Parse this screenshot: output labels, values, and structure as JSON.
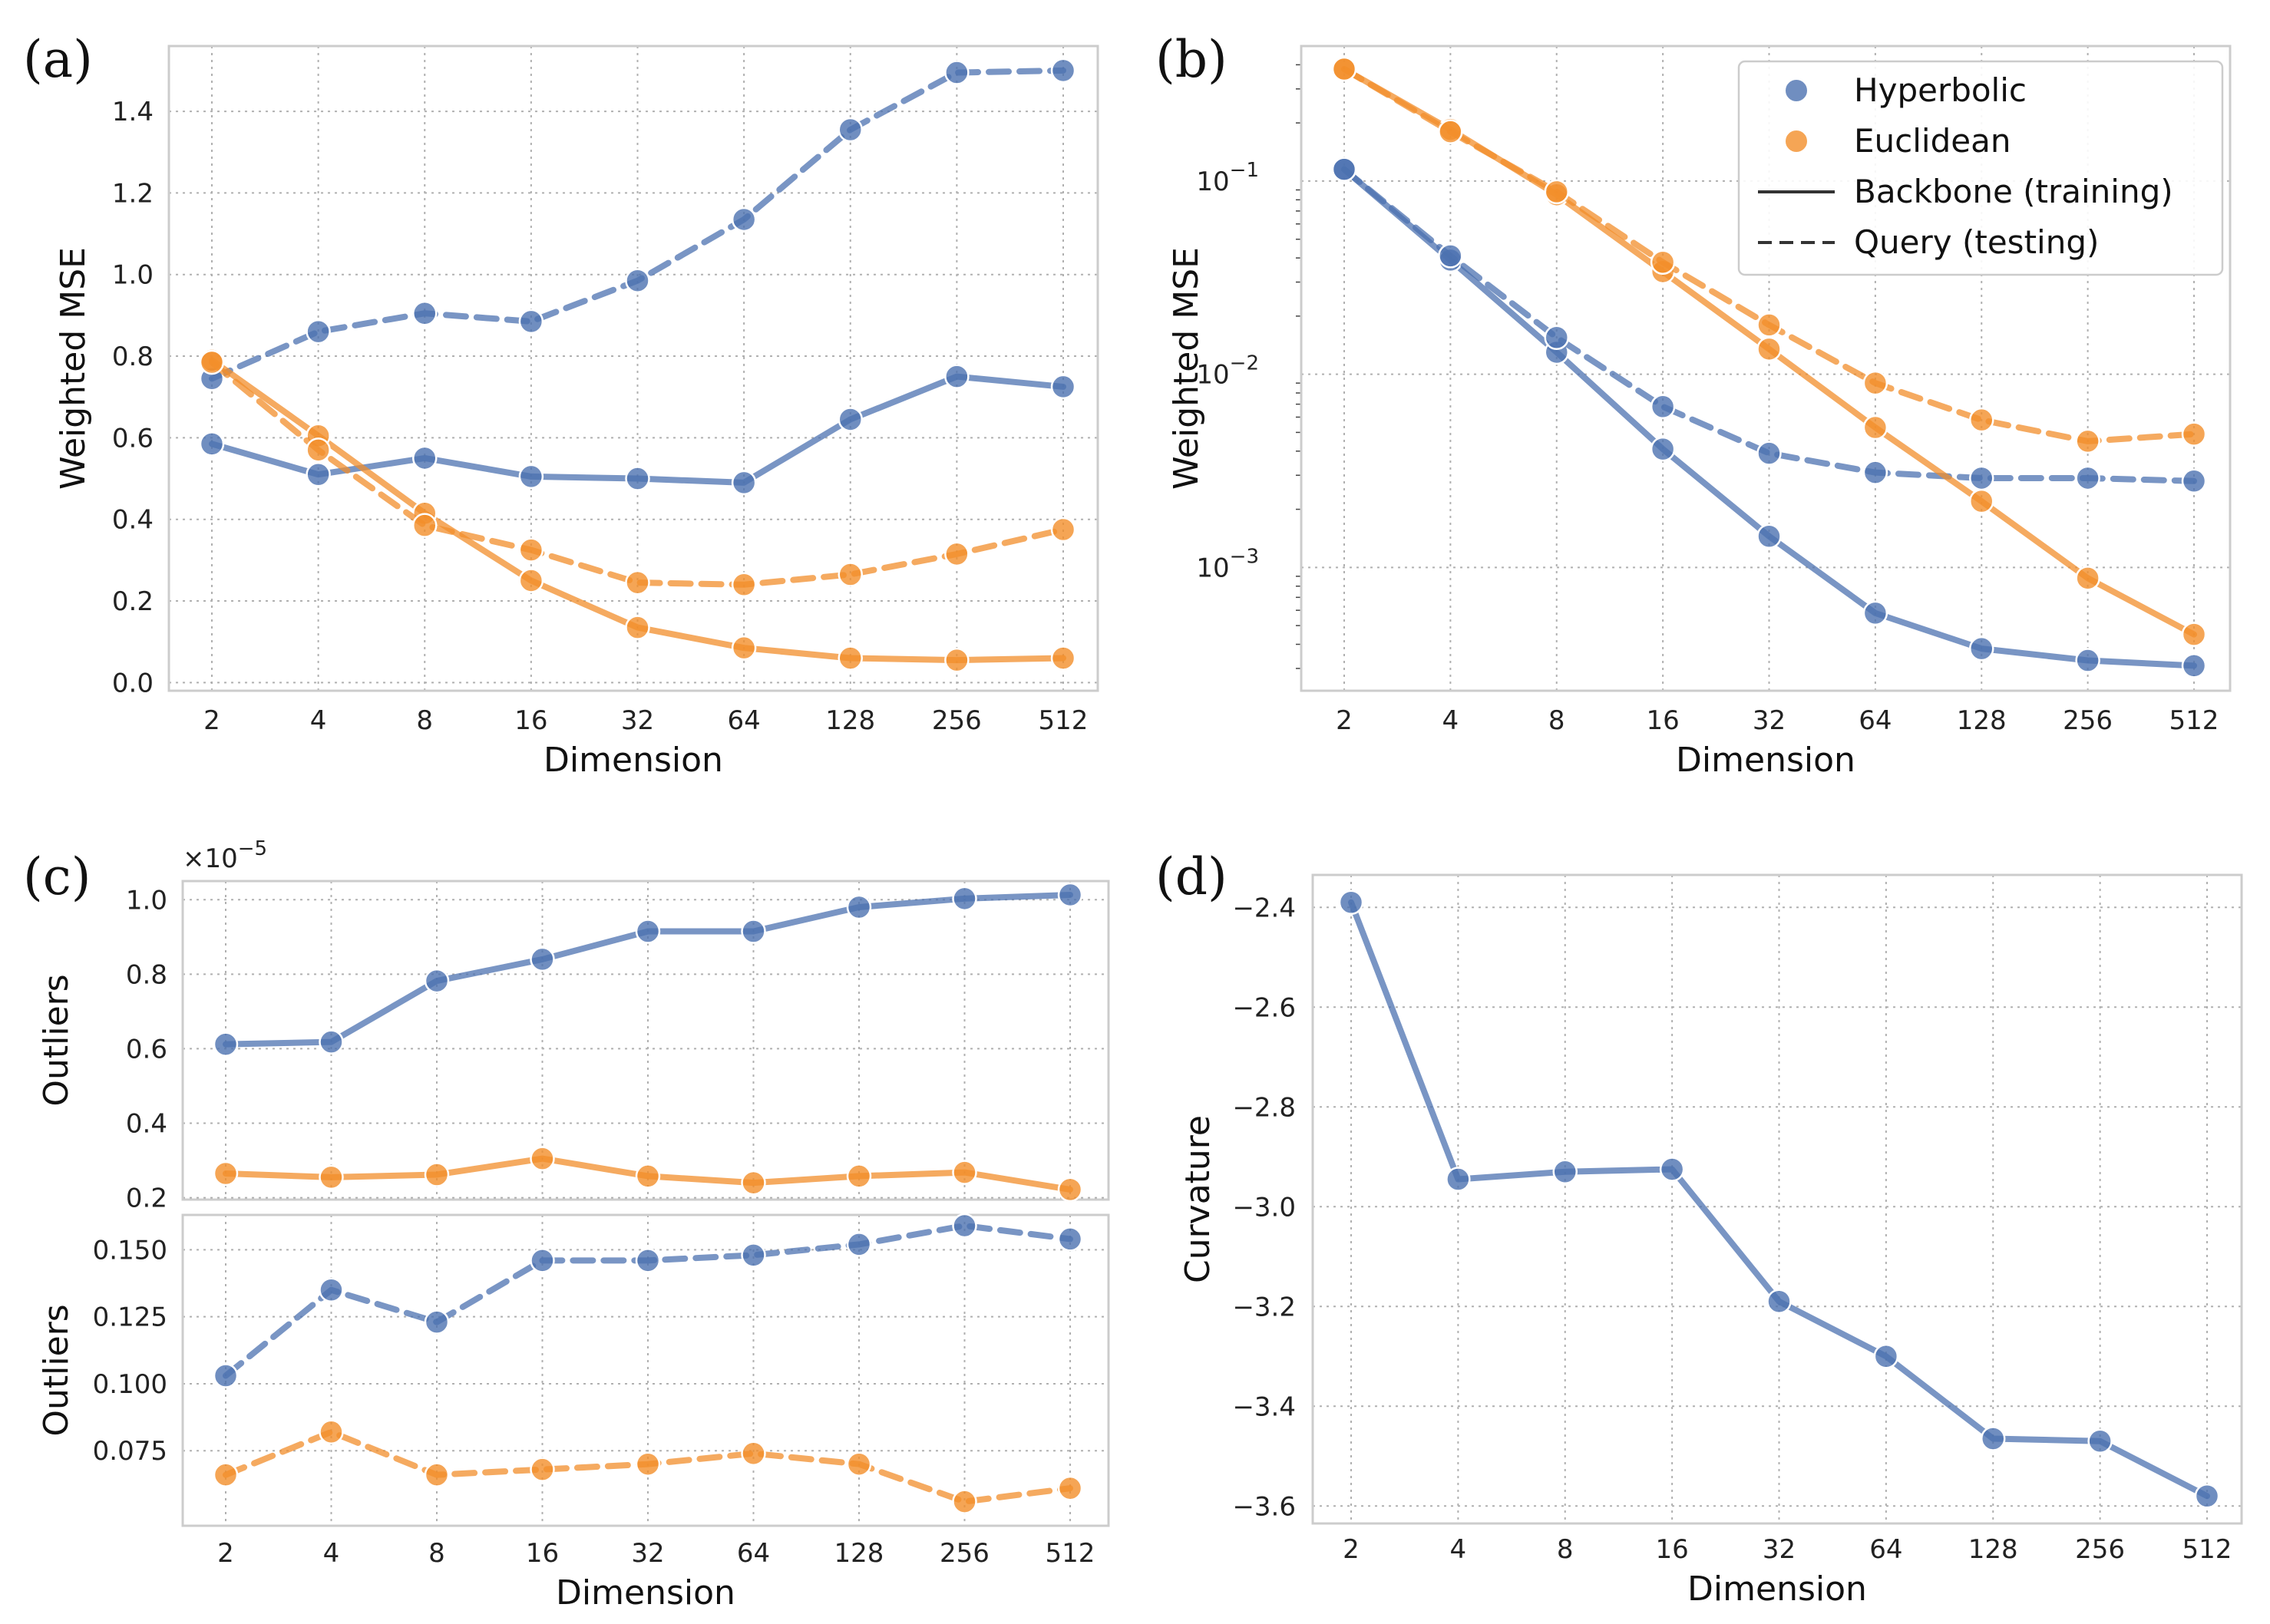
{
  "figure": {
    "colors": {
      "hyperbolic": "#4C72B0",
      "euclidean": "#F28E2B"
    }
  },
  "legend": {
    "entries": [
      "Hyperbolic",
      "Euclidean",
      "Backbone (training)",
      "Query (testing)"
    ]
  },
  "chart_data": [
    {
      "panel": "(a)",
      "type": "line",
      "xlabel": "Dimension",
      "ylabel": "Weighted MSE",
      "yscale": "linear",
      "ylim": [
        -0.02,
        1.56
      ],
      "yticks": [
        0.0,
        0.2,
        0.4,
        0.6,
        0.8,
        1.0,
        1.2,
        1.4
      ],
      "ytick_labels": [
        "0.0",
        "0.2",
        "0.4",
        "0.6",
        "0.8",
        "1.0",
        "1.2",
        "1.4"
      ],
      "categories": [
        "2",
        "4",
        "8",
        "16",
        "32",
        "64",
        "128",
        "256",
        "512"
      ],
      "series": [
        {
          "name": "Hyperbolic Backbone (training)",
          "color": "hyperbolic",
          "dash": "solid",
          "values": [
            0.585,
            0.51,
            0.55,
            0.505,
            0.5,
            0.49,
            0.645,
            0.75,
            0.725
          ]
        },
        {
          "name": "Hyperbolic Query (testing)",
          "color": "hyperbolic",
          "dash": "dashed",
          "values": [
            0.745,
            0.86,
            0.905,
            0.885,
            0.985,
            1.135,
            1.355,
            1.495,
            1.5
          ]
        },
        {
          "name": "Euclidean Backbone (training)",
          "color": "euclidean",
          "dash": "solid",
          "values": [
            0.79,
            0.605,
            0.415,
            0.25,
            0.135,
            0.085,
            0.06,
            0.055,
            0.06
          ]
        },
        {
          "name": "Euclidean Query (testing)",
          "color": "euclidean",
          "dash": "dashed",
          "values": [
            0.785,
            0.57,
            0.385,
            0.325,
            0.245,
            0.24,
            0.265,
            0.315,
            0.375
          ]
        }
      ]
    },
    {
      "panel": "(b)",
      "type": "line",
      "xlabel": "Dimension",
      "ylabel": "Weighted MSE",
      "yscale": "log",
      "ylim": [
        0.00023,
        0.5
      ],
      "yticks": [
        0.001,
        0.01,
        0.1
      ],
      "ytick_labels": [
        "10",
        "10",
        "10"
      ],
      "ytick_exponents": [
        "−3",
        "−2",
        "−1"
      ],
      "categories": [
        "2",
        "4",
        "8",
        "16",
        "32",
        "64",
        "128",
        "256",
        "512"
      ],
      "series": [
        {
          "name": "Hyperbolic Backbone (training)",
          "color": "hyperbolic",
          "dash": "solid",
          "values": [
            0.115,
            0.039,
            0.013,
            0.0041,
            0.00145,
            0.00058,
            0.00038,
            0.00033,
            0.00031
          ]
        },
        {
          "name": "Hyperbolic Query (testing)",
          "color": "hyperbolic",
          "dash": "dashed",
          "values": [
            0.115,
            0.041,
            0.0155,
            0.0068,
            0.0039,
            0.0031,
            0.0029,
            0.0029,
            0.0028
          ]
        },
        {
          "name": "Euclidean Backbone (training)",
          "color": "euclidean",
          "dash": "solid",
          "values": [
            0.38,
            0.185,
            0.085,
            0.034,
            0.0135,
            0.0053,
            0.0022,
            0.00088,
            0.00045
          ]
        },
        {
          "name": "Euclidean Query (testing)",
          "color": "euclidean",
          "dash": "dashed",
          "values": [
            0.38,
            0.18,
            0.088,
            0.038,
            0.018,
            0.009,
            0.0058,
            0.0045,
            0.0049
          ]
        }
      ]
    },
    {
      "panel": "(c)",
      "type": "line",
      "xlabel": "",
      "ylabel": "Outliers",
      "yscale": "linear",
      "offset_text": "×10",
      "offset_exponent": "−5",
      "ylim": [
        0.195,
        1.05
      ],
      "yticks": [
        0.2,
        0.4,
        0.6,
        0.8,
        1.0
      ],
      "ytick_labels": [
        "0.2",
        "0.4",
        "0.6",
        "0.8",
        "1.0"
      ],
      "categories": [
        "2",
        "4",
        "8",
        "16",
        "32",
        "64",
        "128",
        "256",
        "512"
      ],
      "series": [
        {
          "name": "Hyperbolic Backbone (training)",
          "color": "hyperbolic",
          "dash": "solid",
          "values": [
            0.612,
            0.618,
            0.782,
            0.84,
            0.915,
            0.915,
            0.98,
            1.003,
            1.013
          ]
        },
        {
          "name": "Euclidean Backbone (training)",
          "color": "euclidean",
          "dash": "solid",
          "values": [
            0.265,
            0.255,
            0.262,
            0.305,
            0.258,
            0.24,
            0.258,
            0.268,
            0.222
          ]
        }
      ]
    },
    {
      "panel": "",
      "type": "line",
      "xlabel": "Dimension",
      "ylabel": "Outliers",
      "yscale": "linear",
      "ylim": [
        0.047,
        0.163
      ],
      "yticks": [
        0.075,
        0.1,
        0.125,
        0.15
      ],
      "ytick_labels": [
        "0.075",
        "0.100",
        "0.125",
        "0.150"
      ],
      "categories": [
        "2",
        "4",
        "8",
        "16",
        "32",
        "64",
        "128",
        "256",
        "512"
      ],
      "series": [
        {
          "name": "Hyperbolic Query (testing)",
          "color": "hyperbolic",
          "dash": "dashed",
          "values": [
            0.103,
            0.135,
            0.123,
            0.146,
            0.146,
            0.148,
            0.152,
            0.159,
            0.154
          ]
        },
        {
          "name": "Euclidean Query (testing)",
          "color": "euclidean",
          "dash": "dashed",
          "values": [
            0.066,
            0.082,
            0.066,
            0.068,
            0.07,
            0.074,
            0.07,
            0.056,
            0.061
          ]
        }
      ]
    },
    {
      "panel": "(d)",
      "type": "line",
      "xlabel": "Dimension",
      "ylabel": "Curvature",
      "yscale": "linear",
      "ylim": [
        -3.635,
        -2.335
      ],
      "yticks": [
        -3.6,
        -3.4,
        -3.2,
        -3.0,
        -2.8,
        -2.6,
        -2.4
      ],
      "ytick_labels": [
        "−3.6",
        "−3.4",
        "−3.2",
        "−3.0",
        "−2.8",
        "−2.6",
        "−2.4"
      ],
      "categories": [
        "2",
        "4",
        "8",
        "16",
        "32",
        "64",
        "128",
        "256",
        "512"
      ],
      "series": [
        {
          "name": "Hyperbolic curvature",
          "color": "hyperbolic",
          "dash": "solid",
          "values": [
            -2.39,
            -2.945,
            -2.93,
            -2.925,
            -3.19,
            -3.3,
            -3.465,
            -3.47,
            -3.58
          ]
        }
      ]
    }
  ]
}
